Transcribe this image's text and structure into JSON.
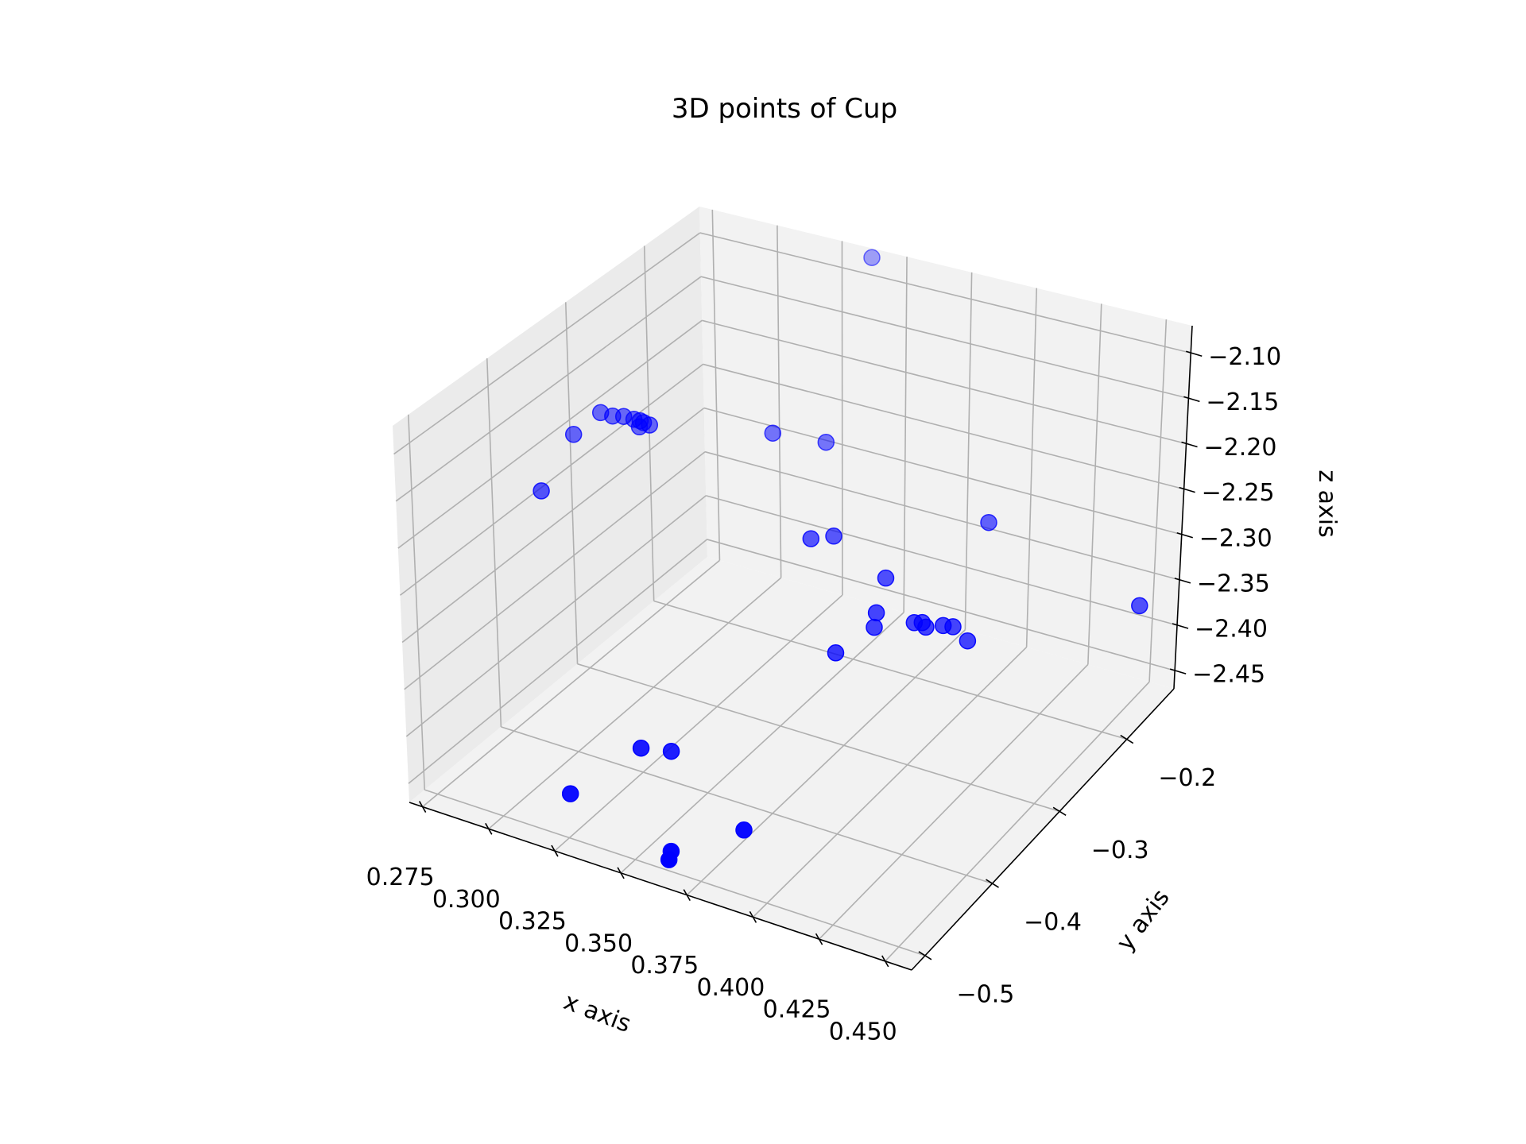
{
  "chart_data": {
    "type": "scatter",
    "projection": "3d",
    "title": "3D points of Cup",
    "xlabel": "x axis",
    "ylabel": "y axis",
    "zlabel": "z axis",
    "xlim": [
      0.27,
      0.46
    ],
    "ylim": [
      -0.52,
      -0.13
    ],
    "zlim": [
      -2.47,
      -2.07
    ],
    "x_ticks": [
      {
        "value": 0.275,
        "label": "0.275"
      },
      {
        "value": 0.3,
        "label": "0.300"
      },
      {
        "value": 0.325,
        "label": "0.325"
      },
      {
        "value": 0.35,
        "label": "0.350"
      },
      {
        "value": 0.375,
        "label": "0.375"
      },
      {
        "value": 0.4,
        "label": "0.400"
      },
      {
        "value": 0.425,
        "label": "0.425"
      },
      {
        "value": 0.45,
        "label": "0.450"
      }
    ],
    "y_ticks": [
      {
        "value": -0.5,
        "label": "−0.5"
      },
      {
        "value": -0.4,
        "label": "−0.4"
      },
      {
        "value": -0.3,
        "label": "−0.3"
      },
      {
        "value": -0.2,
        "label": "−0.2"
      }
    ],
    "z_ticks": [
      {
        "value": -2.45,
        "label": "−2.45"
      },
      {
        "value": -2.4,
        "label": "−2.40"
      },
      {
        "value": -2.35,
        "label": "−2.35"
      },
      {
        "value": -2.3,
        "label": "−2.30"
      },
      {
        "value": -2.25,
        "label": "−2.25"
      },
      {
        "value": -2.2,
        "label": "−2.20"
      },
      {
        "value": -2.15,
        "label": "−2.15"
      },
      {
        "value": -2.1,
        "label": "−2.10"
      }
    ],
    "grid": true,
    "marker_color": "#0000ff",
    "pane_colors": {
      "left": "#ebebeb",
      "right": "#f2f2f2",
      "floor": "#f2f2f2"
    },
    "points": [
      {
        "x": 0.34,
        "y": -0.142,
        "z": -2.071
      },
      {
        "x": 0.291,
        "y": -0.33,
        "z": -2.16
      },
      {
        "x": 0.294,
        "y": -0.325,
        "z": -2.165
      },
      {
        "x": 0.297,
        "y": -0.321,
        "z": -2.166
      },
      {
        "x": 0.3,
        "y": -0.318,
        "z": -2.169
      },
      {
        "x": 0.302,
        "y": -0.317,
        "z": -2.17
      },
      {
        "x": 0.303,
        "y": -0.316,
        "z": -2.172
      },
      {
        "x": 0.305,
        "y": -0.315,
        "z": -2.174
      },
      {
        "x": 0.302,
        "y": -0.318,
        "z": -2.176
      },
      {
        "x": 0.285,
        "y": -0.345,
        "z": -2.178
      },
      {
        "x": 0.285,
        "y": -0.388,
        "z": -2.212
      },
      {
        "x": 0.319,
        "y": -0.202,
        "z": -2.244
      },
      {
        "x": 0.331,
        "y": -0.172,
        "z": -2.265
      },
      {
        "x": 0.354,
        "y": -0.272,
        "z": -2.289
      },
      {
        "x": 0.356,
        "y": -0.248,
        "z": -2.3
      },
      {
        "x": 0.38,
        "y": -0.261,
        "z": -2.319
      },
      {
        "x": 0.398,
        "y": -0.182,
        "z": -2.298
      },
      {
        "x": 0.453,
        "y": -0.162,
        "z": -2.361
      },
      {
        "x": 0.382,
        "y": -0.281,
        "z": -2.341
      },
      {
        "x": 0.384,
        "y": -0.291,
        "z": -2.348
      },
      {
        "x": 0.394,
        "y": -0.271,
        "z": -2.349
      },
      {
        "x": 0.396,
        "y": -0.267,
        "z": -2.35
      },
      {
        "x": 0.398,
        "y": -0.269,
        "z": -2.352
      },
      {
        "x": 0.402,
        "y": -0.259,
        "z": -2.354
      },
      {
        "x": 0.405,
        "y": -0.256,
        "z": -2.355
      },
      {
        "x": 0.41,
        "y": -0.253,
        "z": -2.368
      },
      {
        "x": 0.378,
        "y": -0.323,
        "z": -2.358
      },
      {
        "x": 0.335,
        "y": -0.437,
        "z": -2.413
      },
      {
        "x": 0.342,
        "y": -0.421,
        "z": -2.421
      },
      {
        "x": 0.322,
        "y": -0.487,
        "z": -2.437
      },
      {
        "x": 0.381,
        "y": -0.462,
        "z": -2.441
      },
      {
        "x": 0.362,
        "y": -0.494,
        "z": -2.456
      },
      {
        "x": 0.362,
        "y": -0.497,
        "z": -2.462
      }
    ]
  }
}
